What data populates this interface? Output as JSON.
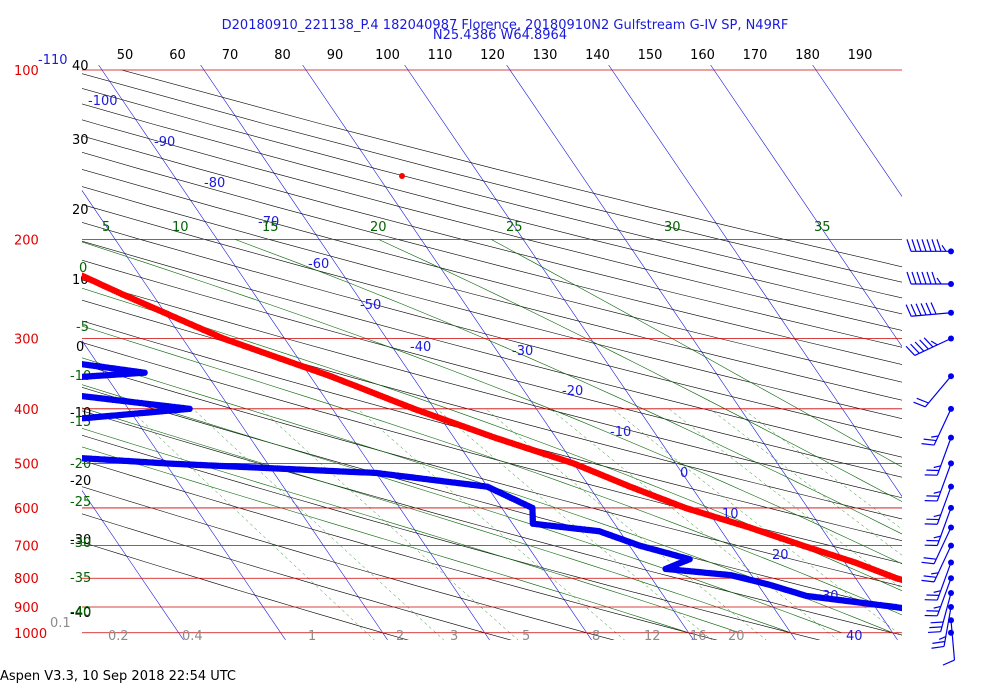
{
  "chart_data": {
    "type": "scatter",
    "title_line1": "D20180910_221138_P.4 182040987 Florence, 20180910N2 Gulfstream G-IV SP, N49RF",
    "title_line2": "N25.4386 W64.8964",
    "top_scale_ticks": [
      "50",
      "60",
      "70",
      "80",
      "90",
      "100",
      "110",
      "120",
      "130",
      "140",
      "150",
      "160",
      "170",
      "180",
      "190"
    ],
    "pressure_ticks": [
      {
        "hpa": 100,
        "label": "100"
      },
      {
        "hpa": 200,
        "label": "200"
      },
      {
        "hpa": 300,
        "label": "300"
      },
      {
        "hpa": 400,
        "label": "400"
      },
      {
        "hpa": 500,
        "label": "500"
      },
      {
        "hpa": 600,
        "label": "600"
      },
      {
        "hpa": 700,
        "label": "700"
      },
      {
        "hpa": 800,
        "label": "800"
      },
      {
        "hpa": 900,
        "label": "900"
      },
      {
        "hpa": 1000,
        "label": "1000"
      }
    ],
    "height_ticks": [
      "40",
      "30",
      "20",
      "10",
      "0",
      "-10",
      "-20",
      "-30",
      "-40"
    ],
    "isotherm_labels": [
      "-110",
      "-100",
      "-90",
      "-80",
      "-70",
      "-60",
      "-50",
      "-40",
      "-30",
      "-20",
      "-10",
      "0",
      "10",
      "20",
      "30",
      "40"
    ],
    "moist_adiabat_labels": [
      "5",
      "10",
      "15",
      "20",
      "25",
      "30",
      "35"
    ],
    "dry_adiabat_labels": [
      "0",
      "-5",
      "-10",
      "-15",
      "-20",
      "-25",
      "-30",
      "-35",
      "-40"
    ],
    "mixing_ratio_labels": [
      "0.1",
      "0.2",
      "0.4",
      "1",
      "2",
      "3",
      "5",
      "8",
      "12",
      "16",
      "20"
    ],
    "series": [
      {
        "name": "",
        "color": "#ff0000",
        "points": [
          [
            150,
            -56
          ],
          [
            200,
            -51
          ],
          [
            250,
            -43
          ],
          [
            300,
            -36
          ],
          [
            350,
            -28
          ],
          [
            400,
            -22
          ],
          [
            450,
            -16
          ],
          [
            500,
            -10
          ],
          [
            550,
            -6
          ],
          [
            600,
            -2
          ],
          [
            650,
            3
          ],
          [
            700,
            7
          ],
          [
            750,
            11
          ],
          [
            800,
            14
          ],
          [
            850,
            18
          ],
          [
            900,
            21
          ],
          [
            950,
            24
          ],
          [
            1000,
            27
          ],
          [
            1020,
            28
          ]
        ]
      },
      {
        "name": "",
        "color": "#0000ee",
        "points": [
          [
            200,
            -70
          ],
          [
            240,
            -66
          ],
          [
            270,
            -56
          ],
          [
            300,
            -55
          ],
          [
            320,
            -58
          ],
          [
            345,
            -46
          ],
          [
            360,
            -62
          ],
          [
            375,
            -56
          ],
          [
            400,
            -44
          ],
          [
            420,
            -58
          ],
          [
            440,
            -70
          ],
          [
            460,
            -72
          ],
          [
            480,
            -65
          ],
          [
            500,
            -50
          ],
          [
            520,
            -30
          ],
          [
            550,
            -20
          ],
          [
            600,
            -17
          ],
          [
            640,
            -18
          ],
          [
            660,
            -12
          ],
          [
            700,
            -9
          ],
          [
            740,
            -5
          ],
          [
            770,
            -8
          ],
          [
            790,
            -2
          ],
          [
            820,
            1
          ],
          [
            860,
            4
          ],
          [
            900,
            12
          ],
          [
            940,
            18
          ],
          [
            970,
            22
          ],
          [
            1000,
            22
          ],
          [
            1020,
            20
          ]
        ]
      }
    ],
    "wind_barbs": [
      {
        "hpa": 210,
        "dir": 270,
        "kt": 75
      },
      {
        "hpa": 240,
        "dir": 270,
        "kt": 65
      },
      {
        "hpa": 270,
        "dir": 265,
        "kt": 60
      },
      {
        "hpa": 300,
        "dir": 245,
        "kt": 55
      },
      {
        "hpa": 350,
        "dir": 220,
        "kt": 20
      },
      {
        "hpa": 400,
        "dir": 205,
        "kt": 25
      },
      {
        "hpa": 450,
        "dir": 200,
        "kt": 25
      },
      {
        "hpa": 500,
        "dir": 200,
        "kt": 25
      },
      {
        "hpa": 550,
        "dir": 200,
        "kt": 25
      },
      {
        "hpa": 600,
        "dir": 200,
        "kt": 25
      },
      {
        "hpa": 650,
        "dir": 205,
        "kt": 20
      },
      {
        "hpa": 700,
        "dir": 205,
        "kt": 25
      },
      {
        "hpa": 750,
        "dir": 200,
        "kt": 25
      },
      {
        "hpa": 800,
        "dir": 200,
        "kt": 25
      },
      {
        "hpa": 850,
        "dir": 195,
        "kt": 30
      },
      {
        "hpa": 900,
        "dir": 190,
        "kt": 25
      },
      {
        "hpa": 950,
        "dir": 175,
        "kt": 10
      },
      {
        "hpa": 1000,
        "dir": 0,
        "kt": 0
      }
    ],
    "colors": {
      "isobar": "#cc0000",
      "isotherm": "#1a1adc",
      "dry_adiabat": "#000000",
      "moist_adiabat": "#006400",
      "mixing_ratio": "#228b22",
      "pressure_label": "#e00000",
      "height_label": "#000000",
      "mixing_label": "#8c8c8c"
    }
  },
  "footer": "Aspen V3.3, 10 Sep 2018  22:54 UTC"
}
